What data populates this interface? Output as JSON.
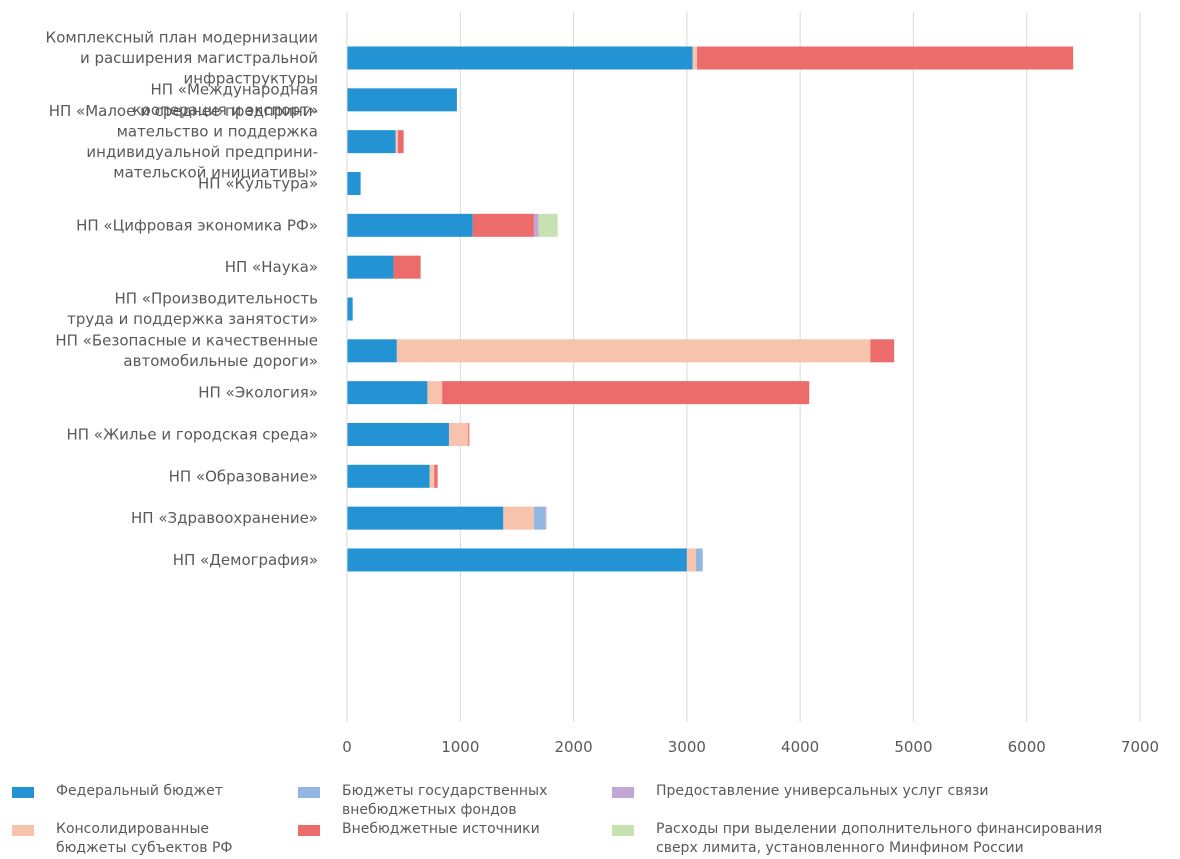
{
  "chart_data": {
    "type": "bar",
    "orientation": "horizontal",
    "stacked": true,
    "categories": [
      "Комплексный план модернизации\nи расширения магистральной\nинфраструктуры",
      "НП «Международная\nкооперация и экспорт»",
      "НП «Малое и среднее предприни-\nмательство и поддержка\nиндивидуальной предприни-\nмательской инициативы»",
      "НП «Культура»",
      "НП «Цифровая экономика РФ»",
      "НП «Наука»",
      "НП «Производительность\nтруда и поддержка занятости»",
      "НП «Безопасные и качественные\nавтомобильные дороги»",
      "НП «Экология»",
      "НП «Жилье и городская среда»",
      "НП «Образование»",
      "НП «Здравоохранение»",
      "НП «Демография»"
    ],
    "series": [
      {
        "name": "Федеральный бюджет",
        "color": "#2493d3",
        "values": [
          3050,
          970,
          430,
          120,
          1110,
          410,
          50,
          440,
          710,
          900,
          730,
          1380,
          3000
        ]
      },
      {
        "name": "Консолидированные\nбюджеты субъектов РФ",
        "color": "#f8c3ad",
        "values": [
          40,
          0,
          20,
          0,
          0,
          0,
          0,
          4180,
          130,
          170,
          40,
          270,
          80
        ]
      },
      {
        "name": "Бюджеты государственных\nвнебюджетных фондов",
        "color": "#93b7e3",
        "values": [
          0,
          0,
          0,
          0,
          0,
          0,
          0,
          0,
          0,
          0,
          0,
          100,
          60
        ]
      },
      {
        "name": "Внебюджетные источники",
        "color": "#ec6b6b",
        "values": [
          3320,
          0,
          50,
          0,
          540,
          240,
          0,
          210,
          3240,
          10,
          30,
          0,
          0
        ]
      },
      {
        "name": "Предоставление универсальных услуг связи",
        "color": "#c1a6d6",
        "values": [
          0,
          0,
          0,
          0,
          40,
          0,
          0,
          0,
          0,
          0,
          0,
          10,
          0
        ]
      },
      {
        "name": "Расходы при выделении дополнительного финансирования\nсверх лимита, установленного Минфином России",
        "color": "#c6e2b1",
        "values": [
          0,
          0,
          0,
          0,
          170,
          0,
          0,
          0,
          0,
          0,
          0,
          0,
          0
        ]
      }
    ],
    "xlim": [
      0,
      7000
    ],
    "xticks": [
      "0",
      "1000",
      "2000",
      "3000",
      "4000",
      "5000",
      "6000",
      "7000"
    ],
    "xlabel": "",
    "ylabel": "",
    "grid": "vertical",
    "legend_position": "bottom"
  }
}
